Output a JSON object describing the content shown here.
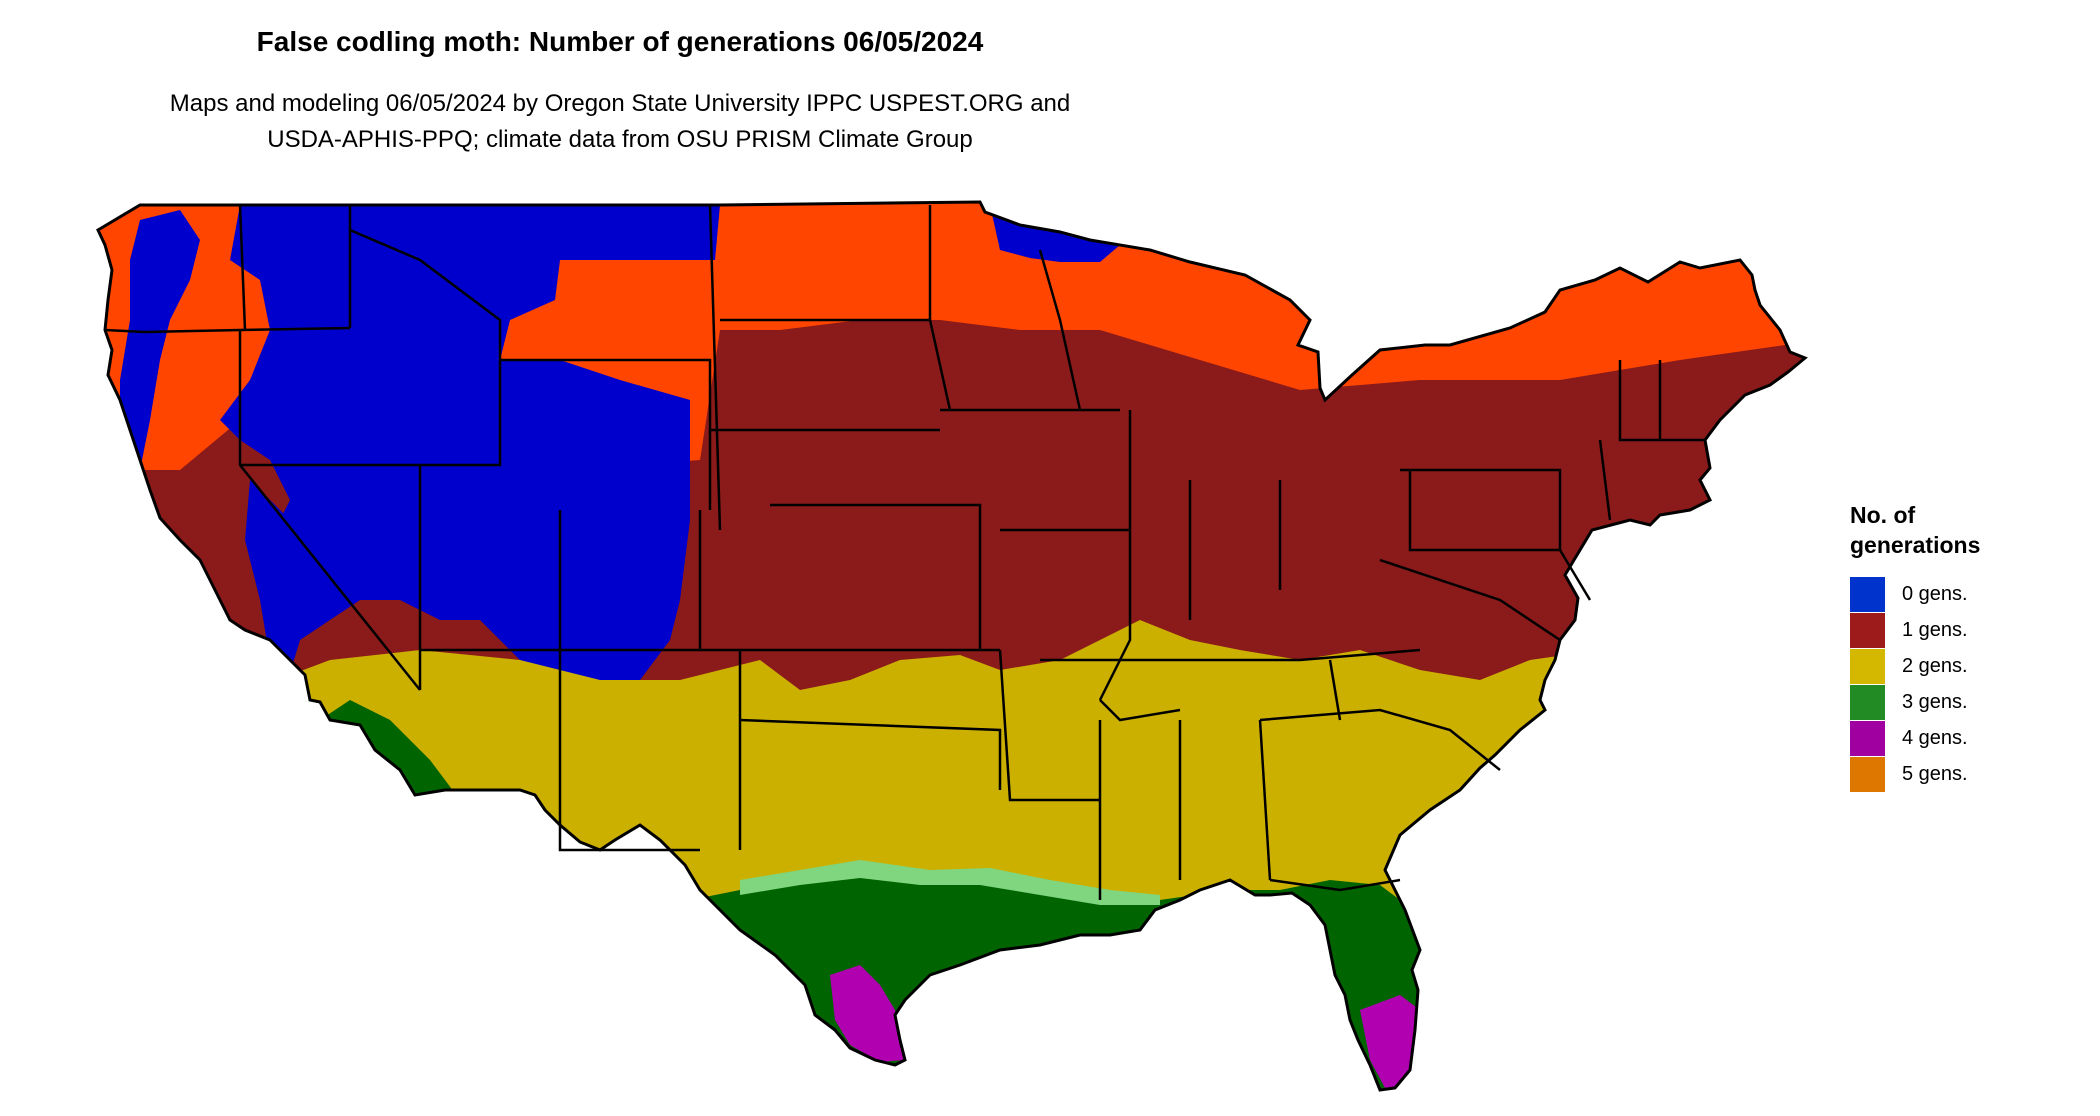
{
  "title": "False codling moth: Number of generations 06/05/2024",
  "subtitle_line1": "Maps and modeling 06/05/2024 by Oregon State University IPPC USPEST.ORG and",
  "subtitle_line2": "USDA-APHIS-PPQ; climate data from OSU PRISM Climate Group",
  "legend": {
    "title_line1": "No. of",
    "title_line2": "generations",
    "items": [
      {
        "label": "0 gens.",
        "color": "#0033cc"
      },
      {
        "label": "1 gens.",
        "color": "#9e1b1b"
      },
      {
        "label": "2 gens.",
        "color": "#d4b800"
      },
      {
        "label": "3 gens.",
        "color": "#238b23"
      },
      {
        "label": "4 gens.",
        "color": "#a000a0"
      },
      {
        "label": "5 gens.",
        "color": "#dd7700"
      }
    ]
  },
  "map_colors": {
    "zero_gens": "#0000cc",
    "one_gens_cool": "#ff4500",
    "one_gens": "#8b1a1a",
    "two_gens": "#ccb000",
    "three_gens": "#006400",
    "three_gens_light": "#7fd67f",
    "four_gens": "#b000b0",
    "five_gens": "#dd7700",
    "border": "#000000"
  }
}
